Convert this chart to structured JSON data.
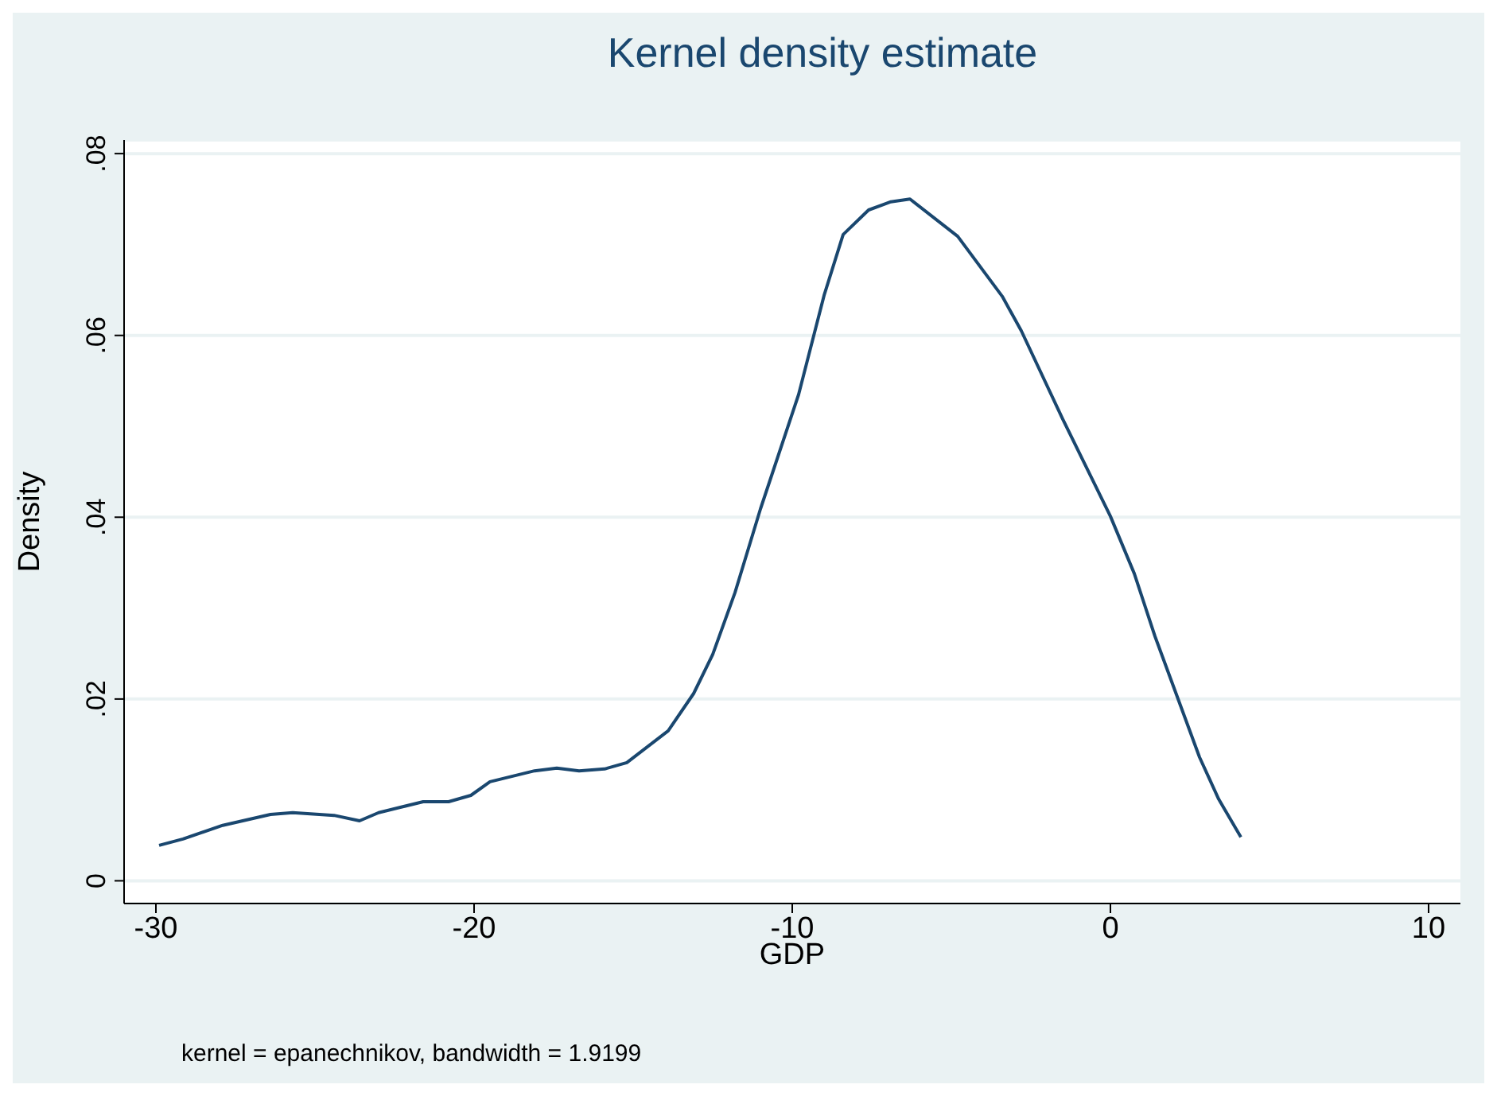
{
  "chart_data": {
    "type": "line",
    "title": "Kernel density estimate",
    "xlabel": "GDP",
    "ylabel": "Density",
    "annotations": [
      "kernel = epanechnikov, bandwidth = 1.9199"
    ],
    "x": [
      -29.9,
      -29.15,
      -27.9,
      -26.4,
      -25.7,
      -24.4,
      -23.6,
      -23.0,
      -21.6,
      -20.8,
      -20.1,
      -19.5,
      -18.1,
      -17.4,
      -16.7,
      -15.9,
      -15.2,
      -13.9,
      -13.1,
      -12.5,
      -11.8,
      -11.0,
      -9.8,
      -9.0,
      -8.4,
      -7.6,
      -6.9,
      -6.3,
      -4.8,
      -3.4,
      -2.8,
      -1.5,
      0,
      0.75,
      1.4,
      2.8,
      3.4,
      4.1
    ],
    "series": [
      {
        "color": "#1a476f",
        "values": [
          0.0039,
          0.0046,
          0.0061,
          0.0073,
          0.0075,
          0.0072,
          0.0066,
          0.0075,
          0.0087,
          0.0087,
          0.0094,
          0.0109,
          0.0121,
          0.0124,
          0.0121,
          0.0123,
          0.013,
          0.0165,
          0.0206,
          0.0249,
          0.0317,
          0.0409,
          0.0535,
          0.0644,
          0.0711,
          0.0738,
          0.0747,
          0.075,
          0.0709,
          0.0643,
          0.0605,
          0.0508,
          0.0401,
          0.0338,
          0.0269,
          0.0136,
          0.009,
          0.0048
        ]
      }
    ],
    "xlim": [
      -31,
      11
    ],
    "xticks": [
      -30,
      -20,
      -10,
      0,
      10
    ],
    "ylim": [
      -0.0025,
      0.0815
    ],
    "yticks": [
      {
        "value": 0,
        "label": "0"
      },
      {
        "value": 0.02,
        "label": ".02"
      },
      {
        "value": 0.04,
        "label": ".04"
      },
      {
        "value": 0.06,
        "label": ".06"
      },
      {
        "value": 0.08,
        "label": ".08"
      }
    ],
    "grid": "y",
    "legend": false,
    "marker": "none",
    "line_style": "solid"
  }
}
